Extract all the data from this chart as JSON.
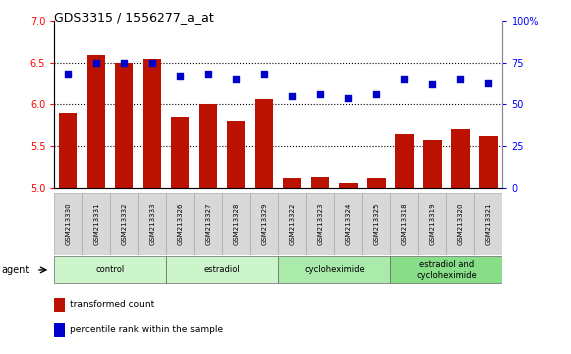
{
  "title": "GDS3315 / 1556277_a_at",
  "samples": [
    "GSM213330",
    "GSM213331",
    "GSM213332",
    "GSM213333",
    "GSM213326",
    "GSM213327",
    "GSM213328",
    "GSM213329",
    "GSM213322",
    "GSM213323",
    "GSM213324",
    "GSM213325",
    "GSM213318",
    "GSM213319",
    "GSM213320",
    "GSM213321"
  ],
  "bar_values": [
    5.9,
    6.6,
    6.5,
    6.55,
    5.85,
    6.0,
    5.8,
    6.07,
    5.12,
    5.13,
    5.05,
    5.12,
    5.65,
    5.57,
    5.7,
    5.62
  ],
  "dot_values": [
    68,
    75,
    75,
    75,
    67,
    68,
    65,
    68,
    55,
    56,
    54,
    56,
    65,
    62,
    65,
    63
  ],
  "bar_color": "#BB1100",
  "dot_color": "#0000CC",
  "ylim_left": [
    5.0,
    7.0
  ],
  "ylim_right": [
    0,
    100
  ],
  "yticks_left": [
    5.0,
    5.5,
    6.0,
    6.5,
    7.0
  ],
  "yticks_right": [
    0,
    25,
    50,
    75,
    100
  ],
  "ytick_labels_right": [
    "0",
    "25",
    "50",
    "75",
    "100%"
  ],
  "hlines": [
    5.5,
    6.0,
    6.5
  ],
  "groups": [
    {
      "label": "control",
      "start": 0,
      "end": 3
    },
    {
      "label": "estradiol",
      "start": 4,
      "end": 7
    },
    {
      "label": "cycloheximide",
      "start": 8,
      "end": 11
    },
    {
      "label": "estradiol and\ncycloheximide",
      "start": 12,
      "end": 15
    }
  ],
  "agent_label": "agent",
  "legend_bar_label": "transformed count",
  "legend_dot_label": "percentile rank within the sample"
}
